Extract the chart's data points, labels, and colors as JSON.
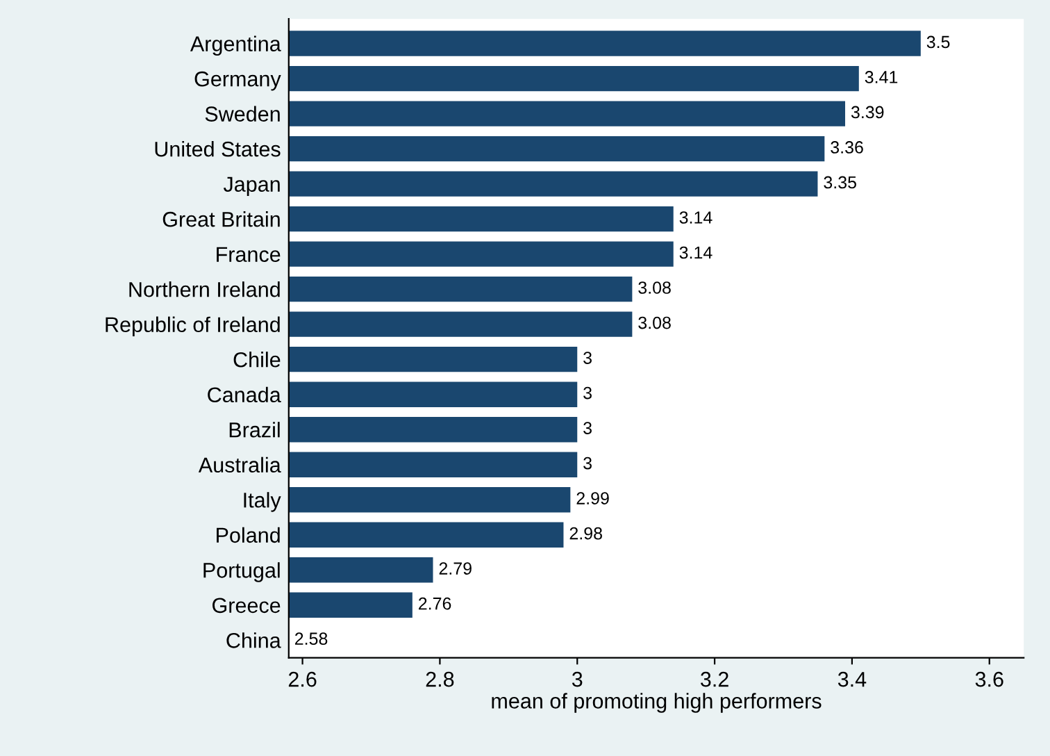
{
  "chart_data": {
    "type": "bar",
    "orientation": "horizontal",
    "xlabel": "mean of promoting high performers",
    "categories": [
      "Argentina",
      "Germany",
      "Sweden",
      "United States",
      "Japan",
      "Great Britain",
      "France",
      "Northern Ireland",
      "Republic of Ireland",
      "Chile",
      "Canada",
      "Brazil",
      "Australia",
      "Italy",
      "Poland",
      "Portugal",
      "Greece",
      "China"
    ],
    "values": [
      3.5,
      3.41,
      3.39,
      3.36,
      3.35,
      3.14,
      3.14,
      3.08,
      3.08,
      3,
      3,
      3,
      3,
      2.99,
      2.98,
      2.79,
      2.76,
      2.58
    ],
    "color": "#1a476f",
    "data_labels": true,
    "xlim": [
      2.58,
      3.65
    ],
    "xticks": [
      2.6,
      2.8,
      3,
      3.2,
      3.4,
      3.6
    ],
    "grid": false,
    "legend": false
  }
}
